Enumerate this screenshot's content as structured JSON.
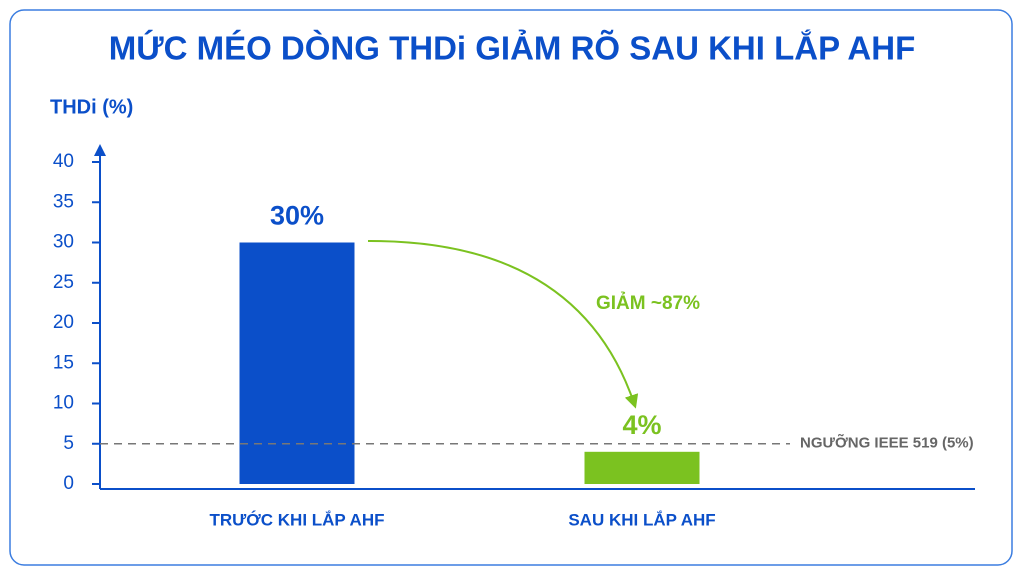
{
  "chart_data": {
    "type": "bar",
    "title": "MỨC MÉO DÒNG THDi GIẢM RÕ SAU KHI LẮP AHF",
    "y_label": "THDi (%)",
    "categories": [
      "TRƯỚC KHI LẮP AHF",
      "SAU KHI LẮP AHF"
    ],
    "values": [
      30,
      4
    ],
    "value_labels": [
      "30%",
      "4%"
    ],
    "colors": [
      "#0b4fc9",
      "#7bc220"
    ],
    "ylim": [
      0,
      40
    ],
    "yticks": [
      0,
      5,
      10,
      15,
      20,
      25,
      30,
      35,
      40
    ],
    "threshold": {
      "value": 5,
      "label": "NGƯỠNG IEEE 519 (5%)"
    },
    "annotation": "GIẢM ~87%"
  }
}
